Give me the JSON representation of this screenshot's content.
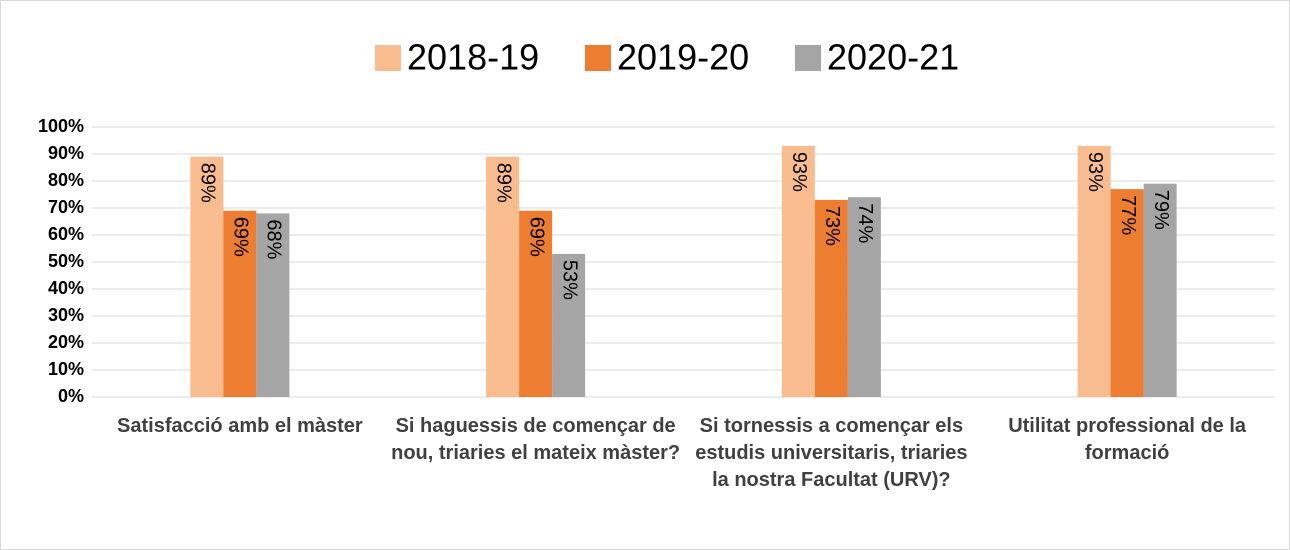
{
  "chart_data": {
    "type": "bar",
    "categories": [
      "Satisfacció amb el màster",
      "Si haguessis de començar de nou, triaries el mateix màster?",
      "Si tornessis a començar els estudis universitaris, triaries la nostra Facultat (URV)?",
      "Utilitat professional de la formació"
    ],
    "series": [
      {
        "name": "2018-19",
        "color": "#f8bc8f",
        "values": [
          89,
          89,
          93,
          93
        ],
        "value_labels": [
          "89%",
          "89%",
          "93%",
          "93%"
        ]
      },
      {
        "name": "2019-20",
        "color": "#ed7d31",
        "values": [
          69,
          69,
          73,
          77
        ],
        "value_labels": [
          "69%",
          "69%",
          "73%",
          "77%"
        ]
      },
      {
        "name": "2020-21",
        "color": "#a5a5a5",
        "values": [
          68,
          53,
          74,
          79
        ],
        "value_labels": [
          "68%",
          "53%",
          "74%",
          "79%"
        ]
      }
    ],
    "ylim": [
      0,
      100
    ],
    "yticks": [
      {
        "value": 0,
        "label": "0%"
      },
      {
        "value": 10,
        "label": "10%"
      },
      {
        "value": 20,
        "label": "20%"
      },
      {
        "value": 30,
        "label": "30%"
      },
      {
        "value": 40,
        "label": "40%"
      },
      {
        "value": 50,
        "label": "50%"
      },
      {
        "value": 60,
        "label": "60%"
      },
      {
        "value": 70,
        "label": "70%"
      },
      {
        "value": 80,
        "label": "80%"
      },
      {
        "value": 90,
        "label": "90%"
      },
      {
        "value": 100,
        "label": "100%"
      }
    ],
    "grid": true,
    "legend": "top"
  }
}
